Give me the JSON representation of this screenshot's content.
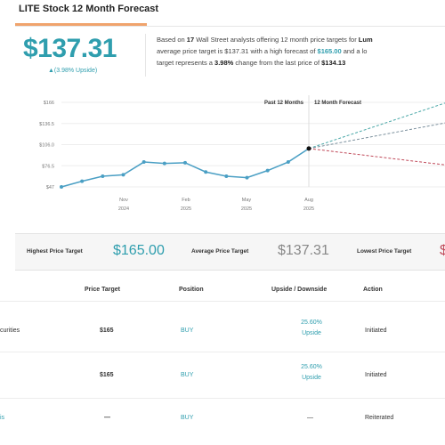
{
  "header": {
    "title": "LITE Stock 12 Month Forecast"
  },
  "summary": {
    "price": "$137.31",
    "upside": "▲(3.98% Upside)",
    "desc": {
      "p1": "Based on ",
      "analysts": "17",
      "p2": " Wall Street analysts offering 12 month price targets for ",
      "ticker": "Lum",
      "p3": "average price target is $137.31 with a high forecast of ",
      "high": "$165.00",
      "p4": " and a lo",
      "p5": "target represents a ",
      "change": "3.98%",
      "p6": " change from the last price of ",
      "last": "$134.13"
    }
  },
  "chart_data": {
    "type": "line",
    "title": "",
    "legend": [
      "Past 12 Months",
      "12 Month Forecast"
    ],
    "y_ticks": [
      "$47",
      "$76.5",
      "$106.0",
      "$136.5",
      "$166"
    ],
    "ylim": [
      47,
      166
    ],
    "x_ticks": [
      {
        "month": "Nov",
        "year": "2024"
      },
      {
        "month": "Feb",
        "year": "2025"
      },
      {
        "month": "May",
        "year": "2025"
      },
      {
        "month": "Aug",
        "year": "2025"
      }
    ],
    "series": [
      {
        "name": "Past 12 Months",
        "color": "#4a9fc4",
        "values": [
          47,
          55,
          62,
          64,
          82,
          80,
          81,
          68,
          62,
          60,
          70,
          82,
          101
        ]
      },
      {
        "name": "High",
        "color": "#4aa8a8",
        "values": [
          101,
          165
        ]
      },
      {
        "name": "Average",
        "color": "#7a8f9c",
        "values": [
          101,
          137
        ]
      },
      {
        "name": "Low",
        "color": "#c04a5a",
        "values": [
          101,
          78
        ]
      }
    ]
  },
  "price_targets": {
    "highest_label": "Highest Price Target",
    "highest_value": "$165.00",
    "average_label": "Average Price Target",
    "average_value": "$137.31",
    "lowest_label": "Lowest Price Target",
    "lowest_value": "$"
  },
  "table": {
    "headers": [
      "Price Target",
      "Position",
      "Upside / Downside",
      "Action"
    ],
    "rows": [
      {
        "firm": "curities",
        "target": "$165",
        "position": "BUY",
        "upside_pct": "25.60%",
        "upside_word": "Upside",
        "action": "Initiated"
      },
      {
        "firm": "",
        "target": "$165",
        "position": "BUY",
        "upside_pct": "25.60%",
        "upside_word": "Upside",
        "action": "Initiated"
      },
      {
        "firm": "is",
        "target": "—",
        "position": "BUY",
        "upside_pct": "—",
        "upside_word": "",
        "action": "Reiterated"
      }
    ]
  },
  "colors": {
    "accent": "#2f9eae",
    "underline": "#f0a36c",
    "low": "#c04a5a"
  }
}
